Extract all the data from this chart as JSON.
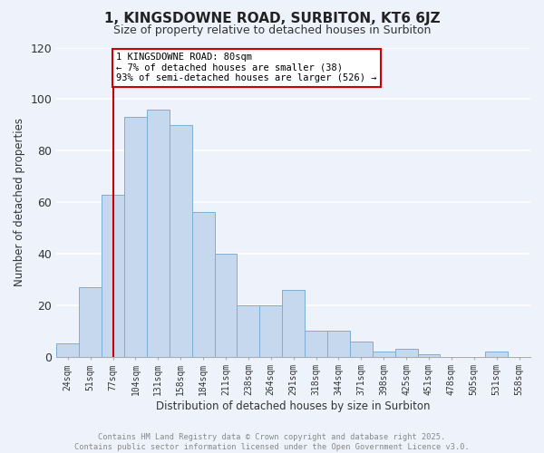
{
  "title": "1, KINGSDOWNE ROAD, SURBITON, KT6 6JZ",
  "subtitle": "Size of property relative to detached houses in Surbiton",
  "xlabel": "Distribution of detached houses by size in Surbiton",
  "ylabel": "Number of detached properties",
  "bar_color": "#c5d8ed",
  "bar_edge_color": "#7aafd4",
  "background_color": "#eef2fb",
  "grid_color": "#ffffff",
  "categories": [
    "24sqm",
    "51sqm",
    "77sqm",
    "104sqm",
    "131sqm",
    "158sqm",
    "184sqm",
    "211sqm",
    "238sqm",
    "264sqm",
    "291sqm",
    "318sqm",
    "344sqm",
    "371sqm",
    "398sqm",
    "425sqm",
    "451sqm",
    "478sqm",
    "505sqm",
    "531sqm",
    "558sqm"
  ],
  "values": [
    5,
    27,
    63,
    93,
    96,
    90,
    56,
    40,
    20,
    20,
    26,
    10,
    10,
    6,
    2,
    3,
    1,
    0,
    0,
    2,
    0
  ],
  "ylim": [
    0,
    120
  ],
  "yticks": [
    0,
    20,
    40,
    60,
    80,
    100,
    120
  ],
  "vline_x_idx": 2,
  "vline_color": "#cc0000",
  "annotation_line1": "1 KINGSDOWNE ROAD: 80sqm",
  "annotation_line2": "← 7% of detached houses are smaller (38)",
  "annotation_line3": "93% of semi-detached houses are larger (526) →",
  "annotation_box_color": "#ffffff",
  "annotation_box_edge": "#cc0000",
  "footer_line1": "Contains HM Land Registry data © Crown copyright and database right 2025.",
  "footer_line2": "Contains public sector information licensed under the Open Government Licence v3.0.",
  "footer_color": "#888888"
}
